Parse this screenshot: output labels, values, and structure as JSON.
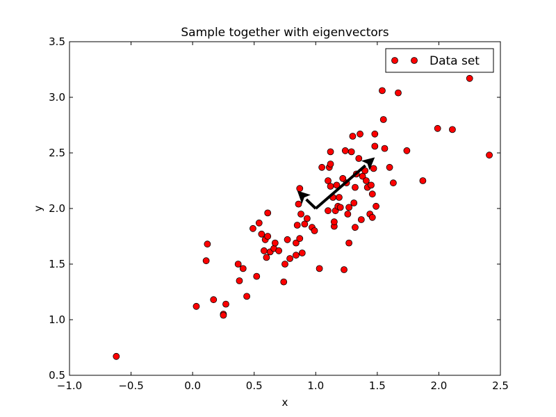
{
  "chart_data": {
    "type": "scatter",
    "title": "Sample together with eigenvectors",
    "xlabel": "x",
    "ylabel": "y",
    "xlim": [
      -1.0,
      2.5
    ],
    "ylim": [
      0.5,
      3.5
    ],
    "xticks": [
      -1.0,
      -0.5,
      0.0,
      0.5,
      1.0,
      1.5,
      2.0,
      2.5
    ],
    "yticks": [
      0.5,
      1.0,
      1.5,
      2.0,
      2.5,
      3.0,
      3.5
    ],
    "xtick_labels": [
      "−1.0",
      "−0.5",
      "0.0",
      "0.5",
      "1.0",
      "1.5",
      "2.0",
      "2.5"
    ],
    "ytick_labels": [
      "0.5",
      "1.0",
      "1.5",
      "2.0",
      "2.5",
      "3.0",
      "3.5"
    ],
    "grid": false,
    "legend": {
      "position": "top-right",
      "entries": [
        "Data set"
      ]
    },
    "series": [
      {
        "name": "Data set",
        "color": "#ff0000",
        "edge_color": "#000000",
        "points": [
          [
            -0.62,
            0.67
          ],
          [
            0.03,
            1.12
          ],
          [
            0.11,
            1.53
          ],
          [
            0.12,
            1.68
          ],
          [
            0.17,
            1.18
          ],
          [
            0.25,
            1.05
          ],
          [
            0.25,
            1.04
          ],
          [
            0.27,
            1.14
          ],
          [
            0.37,
            1.5
          ],
          [
            0.38,
            1.35
          ],
          [
            0.41,
            1.46
          ],
          [
            0.44,
            1.21
          ],
          [
            0.49,
            1.82
          ],
          [
            0.52,
            1.39
          ],
          [
            0.54,
            1.87
          ],
          [
            0.56,
            1.77
          ],
          [
            0.58,
            1.62
          ],
          [
            0.59,
            1.72
          ],
          [
            0.6,
            1.56
          ],
          [
            0.61,
            1.75
          ],
          [
            0.61,
            1.96
          ],
          [
            0.63,
            1.61
          ],
          [
            0.66,
            1.64
          ],
          [
            0.67,
            1.69
          ],
          [
            0.7,
            1.62
          ],
          [
            0.74,
            1.34
          ],
          [
            0.75,
            1.5
          ],
          [
            0.77,
            1.72
          ],
          [
            0.79,
            1.55
          ],
          [
            0.84,
            1.58
          ],
          [
            0.84,
            1.69
          ],
          [
            0.85,
            1.85
          ],
          [
            0.86,
            2.04
          ],
          [
            0.87,
            2.18
          ],
          [
            0.87,
            1.73
          ],
          [
            0.88,
            1.95
          ],
          [
            0.89,
            1.6
          ],
          [
            0.91,
            1.86
          ],
          [
            0.93,
            1.91
          ],
          [
            0.97,
            1.83
          ],
          [
            0.99,
            1.8
          ],
          [
            1.03,
            1.46
          ],
          [
            1.05,
            2.37
          ],
          [
            1.1,
            2.25
          ],
          [
            1.1,
            1.98
          ],
          [
            1.11,
            2.37
          ],
          [
            1.12,
            2.4
          ],
          [
            1.12,
            2.51
          ],
          [
            1.12,
            2.2
          ],
          [
            1.14,
            2.1
          ],
          [
            1.15,
            1.84
          ],
          [
            1.15,
            1.88
          ],
          [
            1.16,
            1.98
          ],
          [
            1.17,
            2.21
          ],
          [
            1.18,
            2.02
          ],
          [
            1.19,
            2.1
          ],
          [
            1.2,
            2.01
          ],
          [
            1.22,
            2.27
          ],
          [
            1.23,
            1.45
          ],
          [
            1.24,
            2.52
          ],
          [
            1.25,
            2.23
          ],
          [
            1.26,
            1.95
          ],
          [
            1.27,
            2.01
          ],
          [
            1.27,
            1.69
          ],
          [
            1.29,
            2.51
          ],
          [
            1.3,
            2.65
          ],
          [
            1.31,
            2.05
          ],
          [
            1.32,
            2.19
          ],
          [
            1.32,
            1.83
          ],
          [
            1.33,
            2.31
          ],
          [
            1.35,
            2.45
          ],
          [
            1.36,
            2.67
          ],
          [
            1.37,
            1.9
          ],
          [
            1.38,
            2.29
          ],
          [
            1.4,
            2.34
          ],
          [
            1.41,
            2.25
          ],
          [
            1.42,
            2.19
          ],
          [
            1.44,
            1.95
          ],
          [
            1.45,
            2.21
          ],
          [
            1.46,
            2.13
          ],
          [
            1.46,
            1.92
          ],
          [
            1.47,
            2.36
          ],
          [
            1.48,
            2.56
          ],
          [
            1.48,
            2.67
          ],
          [
            1.49,
            2.02
          ],
          [
            1.54,
            3.06
          ],
          [
            1.55,
            2.8
          ],
          [
            1.56,
            2.54
          ],
          [
            1.6,
            2.37
          ],
          [
            1.63,
            2.23
          ],
          [
            1.67,
            3.04
          ],
          [
            1.74,
            2.52
          ],
          [
            1.87,
            2.25
          ],
          [
            1.99,
            2.72
          ],
          [
            2.11,
            2.71
          ],
          [
            2.25,
            3.17
          ],
          [
            2.41,
            2.48
          ]
        ]
      }
    ],
    "eigenvectors": {
      "origin": [
        1.0,
        2.0
      ],
      "color": "#000000",
      "vectors": [
        [
          0.48,
          0.46
        ],
        [
          -0.15,
          0.16
        ]
      ]
    }
  }
}
